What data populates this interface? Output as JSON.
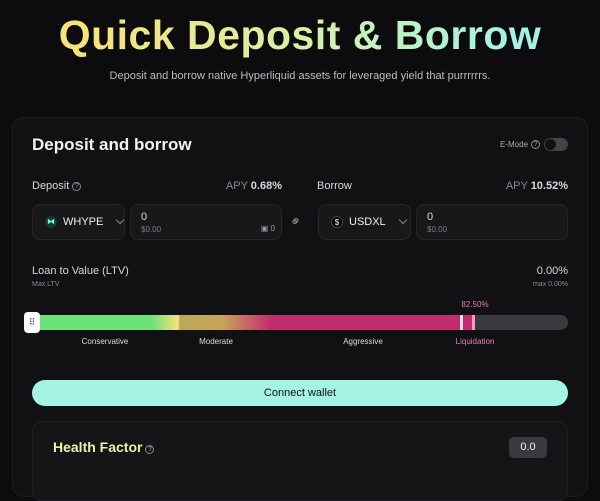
{
  "header": {
    "title": "Quick Deposit & Borrow",
    "subtitle": "Deposit and borrow native Hyperliquid assets for leveraged yield that purrrrrrs."
  },
  "card": {
    "title": "Deposit and borrow",
    "emode_label": "E-Mode",
    "emode_on": false
  },
  "deposit": {
    "label": "Deposit",
    "apy_label": "APY",
    "apy": "0.68%",
    "token": "WHYPE",
    "amount": "0",
    "usd": "$0.00",
    "wallet_balance": "0"
  },
  "borrow": {
    "label": "Borrow",
    "apy_label": "APY",
    "apy": "10.52%",
    "token": "USDXL",
    "amount": "0",
    "usd": "$0.00"
  },
  "ltv": {
    "label": "Loan to Value (LTV)",
    "sublabel": "Max LTV",
    "value": "0.00%",
    "max": "max 0.00%",
    "liquidation_threshold": "82.50%",
    "slider_value_percent": 0,
    "zones": [
      "Conservative",
      "Moderate",
      "Aggressive",
      "Liquidation"
    ]
  },
  "actions": {
    "connect": "Connect wallet"
  },
  "health": {
    "label": "Health Factor",
    "value": "0.0"
  },
  "colors": {
    "accent": "#a5f3e3",
    "liquidation": "#e77fb4",
    "aggressive": "#c12b6f",
    "conservative": "#6ee27a"
  }
}
